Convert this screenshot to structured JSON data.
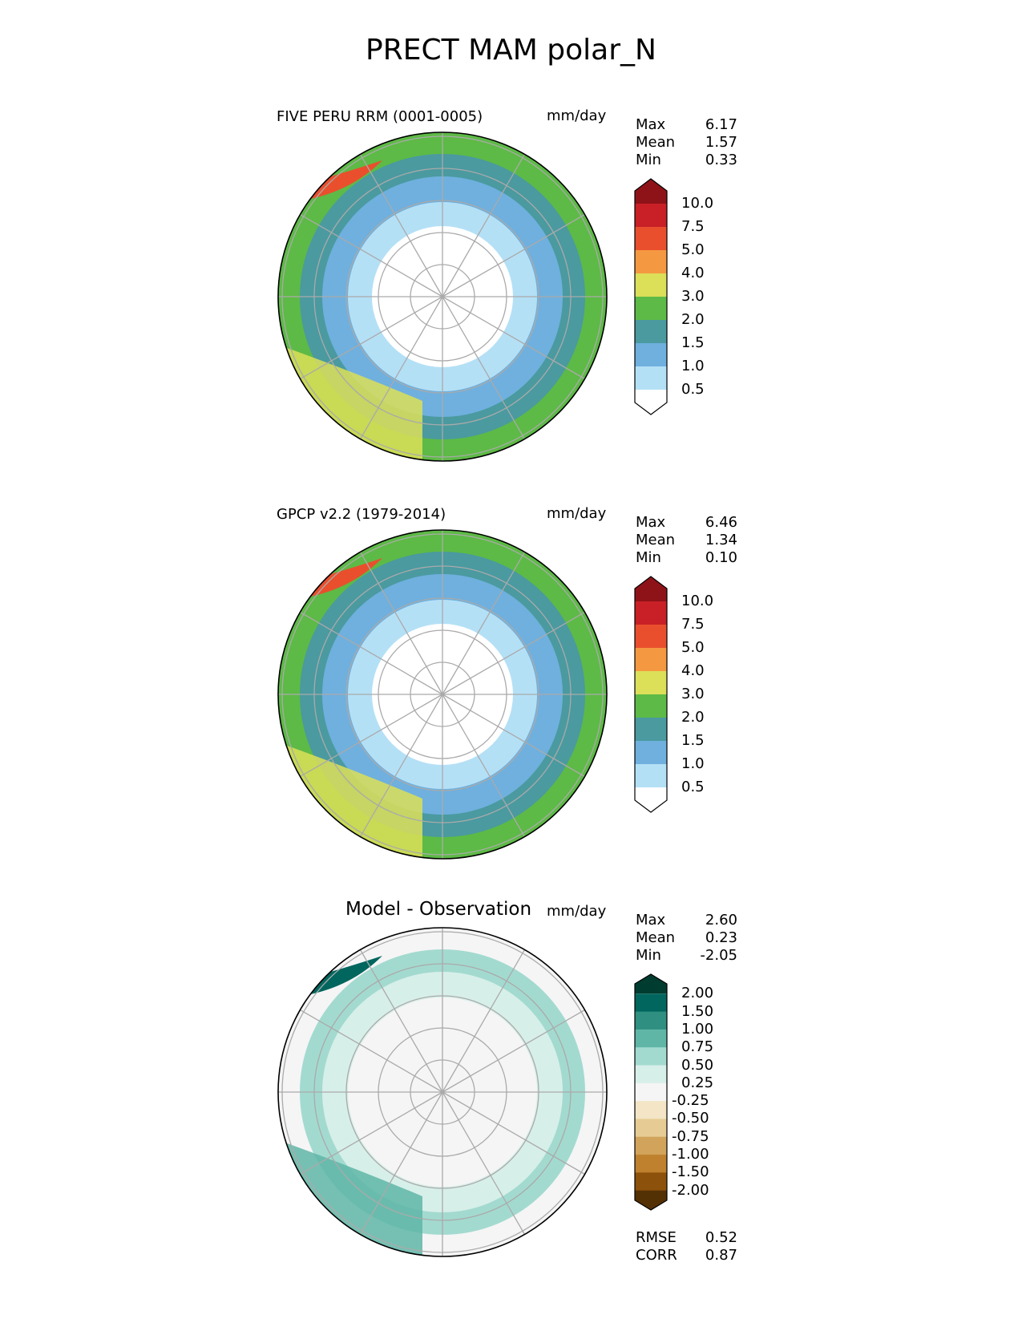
{
  "figure": {
    "title": "PRECT MAM polar_N"
  },
  "chart_data": [
    {
      "type": "heatmap",
      "title": "FIVE PERU RRM (0001-0005)",
      "units": "mm/day",
      "projection": "north-polar-stereographic",
      "stats": [
        {
          "label": "Max",
          "value": "6.17"
        },
        {
          "label": "Mean",
          "value": "1.57"
        },
        {
          "label": "Min",
          "value": "0.33"
        }
      ],
      "colorbar": {
        "levels": [
          "0.5",
          "1.0",
          "1.5",
          "2.0",
          "3.0",
          "4.0",
          "5.0",
          "7.5",
          "10.0"
        ],
        "colors": [
          "#ffffff",
          "#b4e0f6",
          "#6fb0de",
          "#4a9aa0",
          "#5dba46",
          "#dcdf58",
          "#f49941",
          "#e94f2d",
          "#c82026",
          "#8e1319"
        ],
        "extend": "both"
      },
      "colors_by_region": {
        "arctic": "#ffffff",
        "subarctic": "#b4e0f6",
        "midlat": "#6fb0de",
        "storm": "#4a9aa0",
        "outer": "#5dba46",
        "lowlat": "#dcdf58",
        "hot": "#e94f2d"
      }
    },
    {
      "type": "heatmap",
      "title": "GPCP v2.2 (1979-2014)",
      "units": "mm/day",
      "projection": "north-polar-stereographic",
      "stats": [
        {
          "label": "Max",
          "value": "6.46"
        },
        {
          "label": "Mean",
          "value": "1.34"
        },
        {
          "label": "Min",
          "value": "0.10"
        }
      ],
      "colorbar": {
        "levels": [
          "0.5",
          "1.0",
          "1.5",
          "2.0",
          "3.0",
          "4.0",
          "5.0",
          "7.5",
          "10.0"
        ],
        "colors": [
          "#ffffff",
          "#b4e0f6",
          "#6fb0de",
          "#4a9aa0",
          "#5dba46",
          "#dcdf58",
          "#f49941",
          "#e94f2d",
          "#c82026",
          "#8e1319"
        ],
        "extend": "both"
      },
      "colors_by_region": {
        "arctic": "#ffffff",
        "subarctic": "#b4e0f6",
        "midlat": "#6fb0de",
        "storm": "#4a9aa0",
        "outer": "#5dba46",
        "lowlat": "#dcdf58",
        "hot": "#e94f2d"
      }
    },
    {
      "type": "heatmap",
      "title": "Model - Observation",
      "units": "mm/day",
      "projection": "north-polar-stereographic",
      "stats": [
        {
          "label": "Max",
          "value": "2.60"
        },
        {
          "label": "Mean",
          "value": "0.23"
        },
        {
          "label": "Min",
          "value": "-2.05"
        }
      ],
      "extra_stats": [
        {
          "label": "RMSE",
          "value": "0.52"
        },
        {
          "label": "CORR",
          "value": "0.87"
        }
      ],
      "colorbar": {
        "levels": [
          "-2.00",
          "-1.50",
          "-1.00",
          "-0.75",
          "-0.50",
          "-0.25",
          "0.25",
          "0.50",
          "0.75",
          "1.00",
          "1.50",
          "2.00"
        ],
        "colors": [
          "#543005",
          "#8c510a",
          "#bf812d",
          "#d2a35a",
          "#e6cc94",
          "#f3e5c5",
          "#f5f5f5",
          "#d7efe9",
          "#a3dad0",
          "#5fb6a7",
          "#2f8f80",
          "#01665e",
          "#003c30"
        ],
        "extend": "both"
      },
      "colors_by_region": {
        "arctic": "#f5f5f5",
        "subarctic": "#f5f5f5",
        "midlat": "#d7efe9",
        "storm": "#a3dad0",
        "outer": "#f5f5f5",
        "lowlat": "#5fb6a7",
        "hot": "#01665e"
      }
    }
  ]
}
